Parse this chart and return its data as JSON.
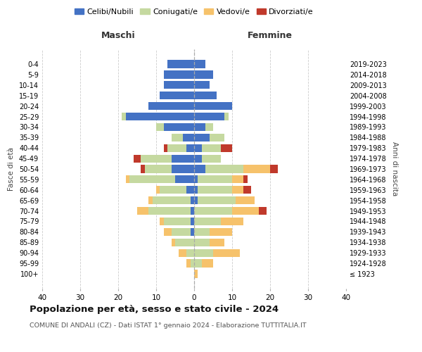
{
  "age_groups": [
    "0-4",
    "5-9",
    "10-14",
    "15-19",
    "20-24",
    "25-29",
    "30-34",
    "35-39",
    "40-44",
    "45-49",
    "50-54",
    "55-59",
    "60-64",
    "65-69",
    "70-74",
    "75-79",
    "80-84",
    "85-89",
    "90-94",
    "95-99",
    "100+"
  ],
  "birth_years": [
    "2019-2023",
    "2014-2018",
    "2009-2013",
    "2004-2008",
    "1999-2003",
    "1994-1998",
    "1989-1993",
    "1984-1988",
    "1979-1983",
    "1974-1978",
    "1969-1973",
    "1964-1968",
    "1959-1963",
    "1954-1958",
    "1949-1953",
    "1944-1948",
    "1939-1943",
    "1934-1938",
    "1929-1933",
    "1924-1928",
    "≤ 1923"
  ],
  "male_celibi": [
    7,
    8,
    8,
    9,
    12,
    18,
    8,
    3,
    2,
    6,
    6,
    5,
    2,
    1,
    1,
    1,
    1,
    0,
    0,
    0,
    0
  ],
  "male_coniugati": [
    0,
    0,
    0,
    0,
    0,
    1,
    2,
    3,
    5,
    8,
    7,
    12,
    7,
    10,
    11,
    7,
    5,
    5,
    2,
    1,
    0
  ],
  "male_vedovi": [
    0,
    0,
    0,
    0,
    0,
    0,
    0,
    0,
    0,
    0,
    0,
    1,
    1,
    1,
    3,
    1,
    2,
    1,
    2,
    1,
    0
  ],
  "male_divorziati": [
    0,
    0,
    0,
    0,
    0,
    0,
    0,
    0,
    1,
    2,
    1,
    0,
    0,
    0,
    0,
    0,
    0,
    0,
    0,
    0,
    0
  ],
  "female_celibi": [
    3,
    5,
    4,
    6,
    10,
    8,
    3,
    4,
    2,
    2,
    3,
    1,
    1,
    1,
    0,
    0,
    0,
    0,
    0,
    0,
    0
  ],
  "female_coniugati": [
    0,
    0,
    0,
    0,
    0,
    1,
    2,
    4,
    5,
    5,
    10,
    9,
    9,
    10,
    10,
    7,
    4,
    4,
    5,
    2,
    0
  ],
  "female_vedovi": [
    0,
    0,
    0,
    0,
    0,
    0,
    0,
    0,
    0,
    0,
    7,
    3,
    3,
    5,
    7,
    6,
    6,
    4,
    7,
    3,
    1
  ],
  "female_divorziati": [
    0,
    0,
    0,
    0,
    0,
    0,
    0,
    0,
    3,
    0,
    2,
    1,
    2,
    0,
    2,
    0,
    0,
    0,
    0,
    0,
    0
  ],
  "colors": {
    "celibi": "#4472c4",
    "coniugati": "#c5d9a0",
    "vedovi": "#f6c26b",
    "divorziati": "#c0392b"
  },
  "title": "Popolazione per età, sesso e stato civile - 2024",
  "subtitle": "COMUNE DI ANDALI (CZ) - Dati ISTAT 1° gennaio 2024 - Elaborazione TUTTITALIA.IT",
  "xlabel_left": "Maschi",
  "xlabel_right": "Femmine",
  "ylabel_left": "Fasce di età",
  "ylabel_right": "Anni di nascita",
  "xlim": 40,
  "legend_labels": [
    "Celibi/Nubili",
    "Coniugati/e",
    "Vedovi/e",
    "Divorziati/e"
  ],
  "bg_color": "#ffffff",
  "grid_color": "#cccccc"
}
